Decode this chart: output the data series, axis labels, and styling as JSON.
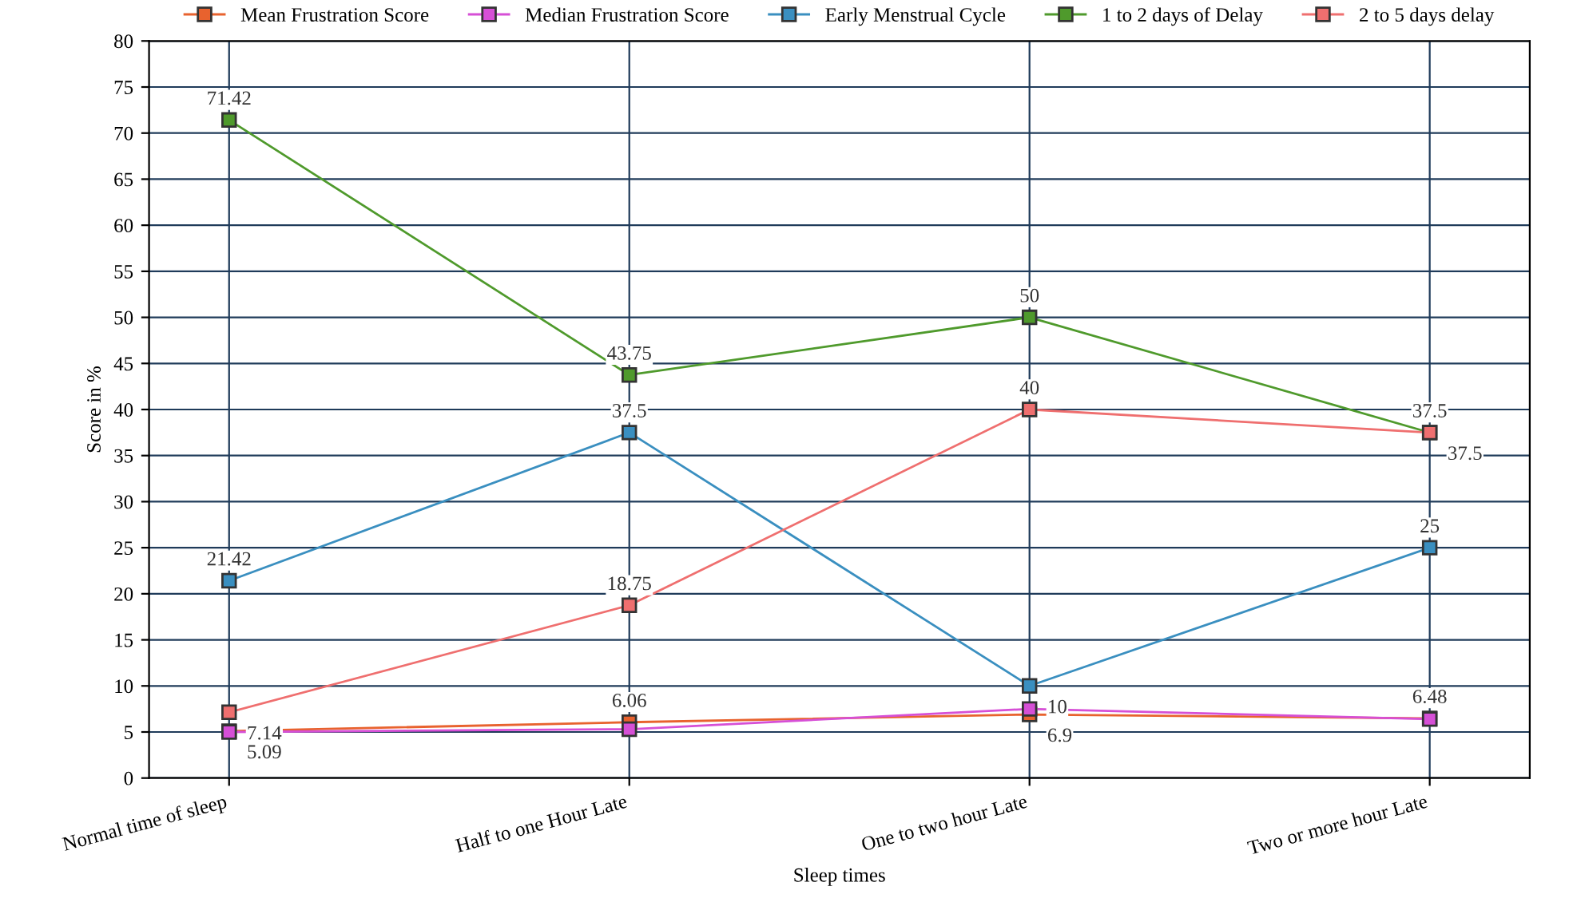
{
  "chart_data": {
    "type": "line",
    "xlabel": "Sleep times",
    "ylabel": "Score in %",
    "categories": [
      "Normal time of sleep",
      "Half to one Hour Late",
      "One to two hour Late",
      "Two or more hour Late"
    ],
    "series": [
      {
        "name": "Mean Frustration Score",
        "color": "#e8622e",
        "values": [
          5.09,
          6.06,
          6.9,
          6.48
        ],
        "value_labels": [
          "5.09",
          "6.06",
          "6.9",
          "6.48"
        ]
      },
      {
        "name": "Median Frustration Score",
        "color": "#d64fd6",
        "values": [
          5,
          5.3,
          7.5,
          6.4
        ]
      },
      {
        "name": "Early Menstrual Cycle",
        "color": "#3a8fc0",
        "values": [
          21.42,
          37.5,
          10,
          25
        ],
        "value_labels": [
          "21.42",
          "37.5",
          "10",
          "25"
        ]
      },
      {
        "name": "1 to 2 days of Delay",
        "color": "#4f9a2c",
        "values": [
          71.42,
          43.75,
          50,
          37.5
        ],
        "value_labels": [
          "71.42",
          "43.75",
          "50",
          "37.5"
        ]
      },
      {
        "name": "2 to 5 days delay",
        "color": "#ef6f6f",
        "values": [
          7.14,
          18.75,
          40,
          37.5
        ],
        "value_labels": [
          "7.14",
          "18.75",
          "40",
          "37.5"
        ]
      }
    ],
    "ylim": [
      0,
      80
    ],
    "yticks": [
      0,
      5,
      10,
      15,
      20,
      25,
      30,
      35,
      40,
      45,
      50,
      55,
      60,
      65,
      70,
      75,
      80
    ],
    "grid": true,
    "legend": "top",
    "marker": "square",
    "line_style": "solid"
  }
}
